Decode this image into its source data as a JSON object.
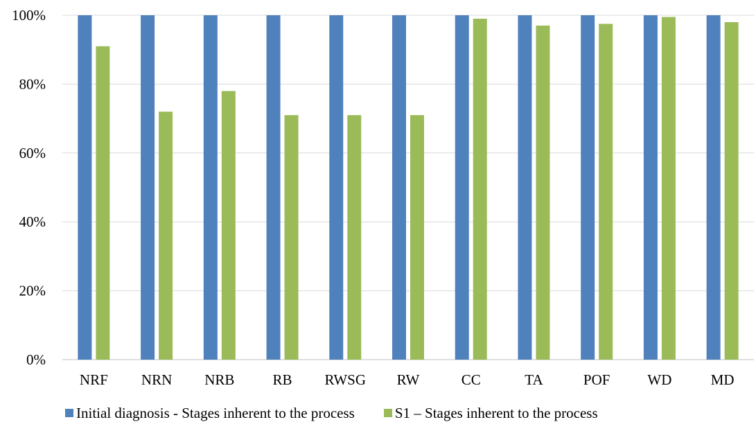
{
  "chart_data": {
    "type": "bar",
    "categories": [
      "NRF",
      "NRN",
      "NRB",
      "RB",
      "RWSG",
      "RW",
      "CC",
      "TA",
      "POF",
      "WD",
      "MD"
    ],
    "series": [
      {
        "name": "Initial diagnosis - Stages inherent to the process",
        "color": "#4f81bd",
        "values": [
          100,
          100,
          100,
          100,
          100,
          100,
          100,
          100,
          100,
          100,
          100
        ]
      },
      {
        "name": "S1 – Stages inherent to the process",
        "color": "#9bbb59",
        "values": [
          91,
          72,
          78,
          71,
          71,
          71,
          99,
          97,
          97.5,
          99.5,
          98
        ]
      }
    ],
    "yticks": [
      "0%",
      "20%",
      "40%",
      "60%",
      "80%",
      "100%"
    ],
    "ylim": [
      0,
      100
    ],
    "grid": true,
    "legend_position": "bottom",
    "title": "",
    "xlabel": "",
    "ylabel": ""
  }
}
